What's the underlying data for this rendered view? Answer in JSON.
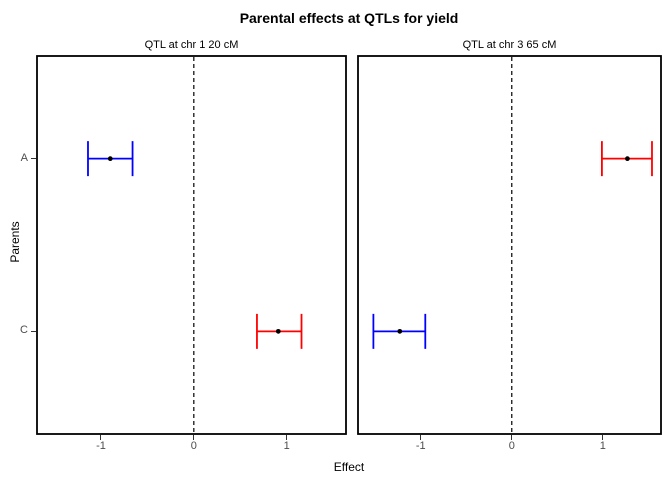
{
  "title": "Parental effects at QTLs for yield",
  "chart_data": {
    "type": "errorbar",
    "title": "Parental effects at QTLs for yield",
    "xlabel": "Effect",
    "ylabel": "Parents",
    "categories": [
      "A",
      "C"
    ],
    "x_ticks": [
      -1,
      0,
      1
    ],
    "x_tick_labels": [
      "-1",
      "0",
      "1"
    ],
    "xlim": [
      -1.7,
      1.65
    ],
    "zero_line": {
      "x": 0,
      "style": "dashed",
      "color": "#000000"
    },
    "grid": "off",
    "legend": "none",
    "panels": [
      {
        "label": "QTL at chr 1 20 cM",
        "points": [
          {
            "parent": "A",
            "effect": -0.9,
            "lower": -1.14,
            "upper": -0.66,
            "color": "#0000FF"
          },
          {
            "parent": "C",
            "effect": 0.91,
            "lower": 0.68,
            "upper": 1.16,
            "color": "#FF0000"
          }
        ]
      },
      {
        "label": "QTL at chr 3 65 cM",
        "points": [
          {
            "parent": "A",
            "effect": 1.27,
            "lower": 0.99,
            "upper": 1.54,
            "color": "#FF0000"
          },
          {
            "parent": "C",
            "effect": -1.23,
            "lower": -1.52,
            "upper": -0.95,
            "color": "#0000FF"
          }
        ]
      }
    ],
    "colors": {
      "dot": "#000000",
      "border": "#000000",
      "tick_mark": "#333333",
      "tick_label": "#4d4d4d"
    }
  }
}
